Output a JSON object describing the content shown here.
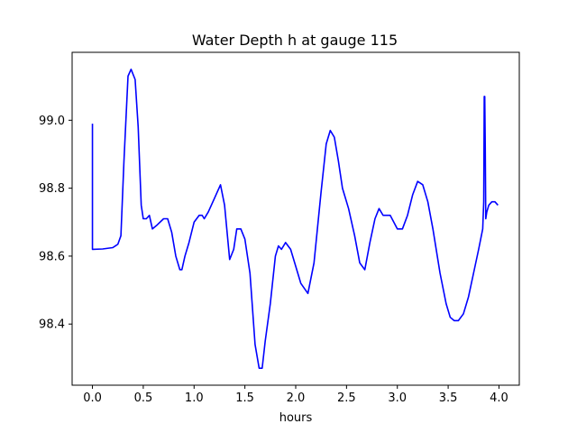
{
  "chart_data": {
    "type": "line",
    "title": "Water Depth h at gauge 115",
    "xlabel": "hours",
    "ylabel": "",
    "xlim": [
      -0.2,
      4.2
    ],
    "ylim": [
      98.22,
      99.2
    ],
    "xticks": [
      0.0,
      0.5,
      1.0,
      1.5,
      2.0,
      2.5,
      3.0,
      3.5,
      4.0
    ],
    "xtick_labels": [
      "0.0",
      "0.5",
      "1.0",
      "1.5",
      "2.0",
      "2.5",
      "3.0",
      "3.5",
      "4.0"
    ],
    "yticks": [
      98.4,
      98.6,
      98.8,
      99.0
    ],
    "ytick_labels": [
      "98.4",
      "98.6",
      "98.8",
      "99.0"
    ],
    "grid": false,
    "series": [
      {
        "color": "#0000ff",
        "x": [
          0.0,
          0.0,
          0.001,
          0.1,
          0.2,
          0.25,
          0.28,
          0.31,
          0.35,
          0.38,
          0.42,
          0.45,
          0.48,
          0.5,
          0.53,
          0.56,
          0.59,
          0.63,
          0.7,
          0.74,
          0.78,
          0.82,
          0.86,
          0.88,
          0.91,
          0.95,
          1.0,
          1.05,
          1.08,
          1.1,
          1.14,
          1.2,
          1.26,
          1.3,
          1.35,
          1.39,
          1.42,
          1.46,
          1.5,
          1.55,
          1.6,
          1.64,
          1.67,
          1.7,
          1.75,
          1.8,
          1.83,
          1.86,
          1.9,
          1.95,
          2.05,
          2.12,
          2.18,
          2.25,
          2.3,
          2.34,
          2.38,
          2.42,
          2.46,
          2.52,
          2.58,
          2.63,
          2.68,
          2.73,
          2.78,
          2.82,
          2.86,
          2.93,
          3.0,
          3.05,
          3.1,
          3.15,
          3.2,
          3.25,
          3.3,
          3.35,
          3.42,
          3.48,
          3.52,
          3.56,
          3.6,
          3.65,
          3.7,
          3.75,
          3.8,
          3.84,
          3.85,
          3.855,
          3.86,
          3.865,
          3.87,
          3.88,
          3.9,
          3.93,
          3.96,
          3.99
        ],
        "y": [
          98.99,
          98.62,
          98.62,
          98.621,
          98.625,
          98.635,
          98.66,
          98.88,
          99.13,
          99.15,
          99.12,
          98.98,
          98.75,
          98.71,
          98.71,
          98.72,
          98.68,
          98.69,
          98.71,
          98.71,
          98.67,
          98.6,
          98.56,
          98.56,
          98.6,
          98.64,
          98.7,
          98.72,
          98.72,
          98.71,
          98.73,
          98.77,
          98.81,
          98.75,
          98.59,
          98.62,
          98.68,
          98.68,
          98.65,
          98.55,
          98.34,
          98.27,
          98.27,
          98.35,
          98.46,
          98.6,
          98.63,
          98.62,
          98.64,
          98.62,
          98.52,
          98.49,
          98.58,
          98.79,
          98.93,
          98.97,
          98.95,
          98.88,
          98.8,
          98.74,
          98.66,
          98.58,
          98.56,
          98.64,
          98.71,
          98.74,
          98.72,
          98.72,
          98.68,
          98.68,
          98.72,
          98.78,
          98.82,
          98.81,
          98.76,
          98.68,
          98.55,
          98.46,
          98.42,
          98.41,
          98.41,
          98.43,
          98.48,
          98.55,
          98.62,
          98.68,
          98.76,
          99.07,
          99.07,
          98.92,
          98.71,
          98.73,
          98.75,
          98.76,
          98.76,
          98.75
        ]
      }
    ]
  }
}
